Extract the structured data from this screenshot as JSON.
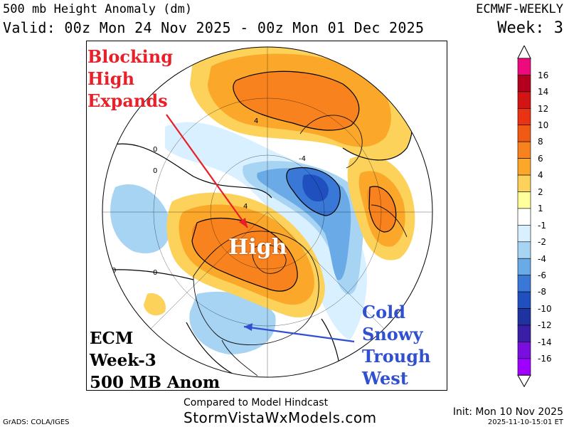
{
  "header": {
    "title": "500 mb Height Anomaly (dm)",
    "valid": "Valid: 00z Mon 24 Nov 2025 - 00z Mon 01 Dec 2025",
    "model": "ECMWF-WEEKLY",
    "week": "Week: 3"
  },
  "annotations": {
    "blocking": [
      "Blocking",
      "High",
      "Expands"
    ],
    "high": "High",
    "cold": [
      "Cold",
      "Snowy",
      "Trough",
      "West"
    ],
    "ecm": [
      "ECM",
      "Week-3",
      "500 MB Anom"
    ]
  },
  "contour_labels": [
    "0",
    "0",
    "0",
    "4",
    "4",
    "-4",
    "0"
  ],
  "colorbar": {
    "labels": [
      "16",
      "14",
      "12",
      "10",
      "8",
      "6",
      "4",
      "2",
      "1",
      "-1",
      "-2",
      "-4",
      "-6",
      "-8",
      "-10",
      "-12",
      "-14",
      "-16"
    ],
    "colors": [
      "#ee0a7e",
      "#b4001e",
      "#d21414",
      "#ea3214",
      "#f05a14",
      "#f8821e",
      "#fba82a",
      "#fdd25a",
      "#ffff9b",
      "#ffffff",
      "#d8f0ff",
      "#a8d4f4",
      "#6aaae6",
      "#3a78d8",
      "#2050c0",
      "#1e32a0",
      "#3a1fa6",
      "#7a0ee0",
      "#a000ff"
    ]
  },
  "footer": {
    "compared": "Compared to Model Hindcast",
    "site": "StormVistaWxModels.com",
    "grads": "GrADS: COLA/IGES",
    "init": "Init: Mon 10 Nov 2025",
    "stamp": "2025-11-10-15:01 ET"
  }
}
